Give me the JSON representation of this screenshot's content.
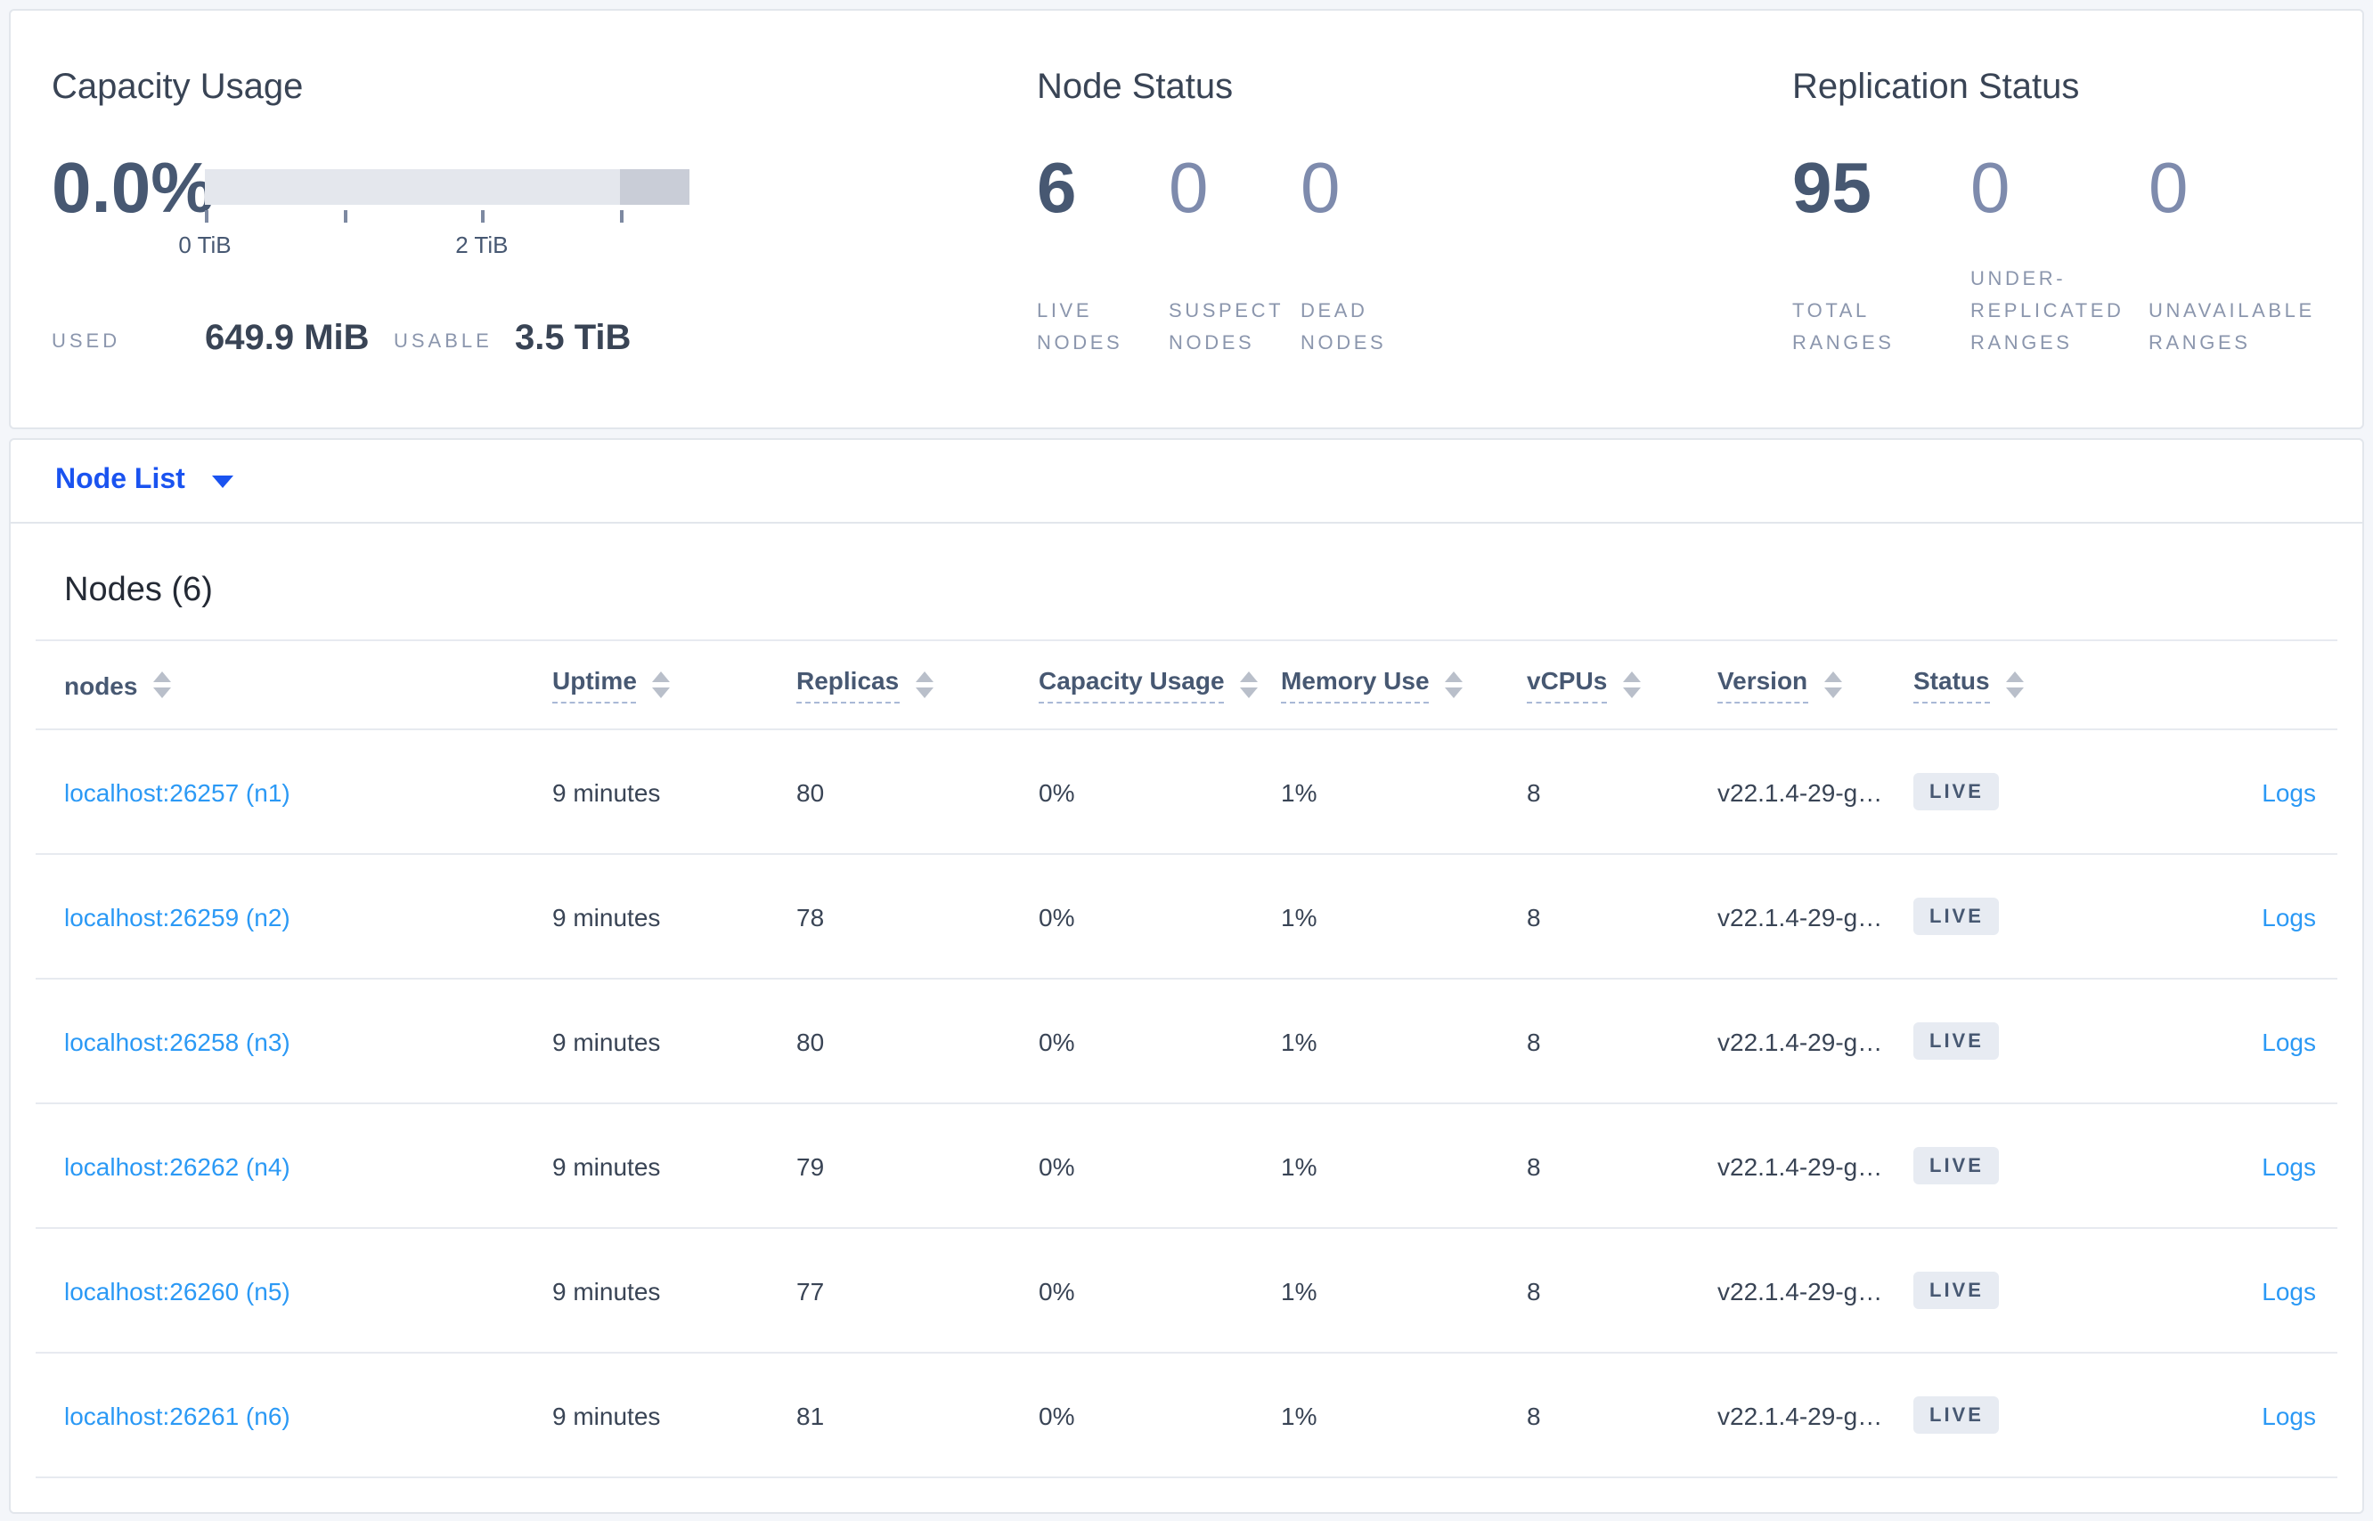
{
  "overview": {
    "capacity": {
      "title": "Capacity Usage",
      "percent": "0.0%",
      "bar": {
        "total": "3.5 TiB",
        "tick_positions_pct": [
          0,
          28.57,
          57.14,
          85.71
        ],
        "tick_labels": [
          {
            "text": "0 TiB",
            "pct": 0
          },
          {
            "text": "2 TiB",
            "pct": 57.14
          }
        ],
        "dark_segment": {
          "left_pct": 85.71,
          "width_pct": 14.29
        }
      },
      "used": {
        "label": "USED",
        "value": "649.9 MiB"
      },
      "usable": {
        "label": "USABLE",
        "value": "3.5 TiB"
      }
    },
    "node_status": {
      "title": "Node Status",
      "stats": [
        {
          "value": "6",
          "label": "LIVE\nNODES"
        },
        {
          "value": "0",
          "label": "SUSPECT\nNODES"
        },
        {
          "value": "0",
          "label": "DEAD\nNODES"
        }
      ]
    },
    "replication_status": {
      "title": "Replication Status",
      "stats": [
        {
          "value": "95",
          "label": "TOTAL\nRANGES"
        },
        {
          "value": "0",
          "label": "UNDER-\nREPLICATED\nRANGES"
        },
        {
          "value": "0",
          "label": "UNAVAILABLE\nRANGES"
        }
      ]
    }
  },
  "view_selector": {
    "label": "Node List",
    "icon": "caret-down"
  },
  "nodes": {
    "title": "Nodes (6)",
    "columns": [
      {
        "label": "nodes",
        "underlined": false
      },
      {
        "label": "Uptime",
        "underlined": true
      },
      {
        "label": "Replicas",
        "underlined": true
      },
      {
        "label": "Capacity Usage",
        "underlined": true
      },
      {
        "label": "Memory Use",
        "underlined": true
      },
      {
        "label": "vCPUs",
        "underlined": true
      },
      {
        "label": "Version",
        "underlined": true
      },
      {
        "label": "Status",
        "underlined": true
      }
    ],
    "rows": [
      {
        "address": "localhost:26257 (n1)",
        "uptime": "9 minutes",
        "replicas": "80",
        "capacity_usage": "0%",
        "memory_use": "1%",
        "vcpus": "8",
        "version": "v22.1.4-29-g…",
        "status": "LIVE",
        "logs_label": "Logs"
      },
      {
        "address": "localhost:26259 (n2)",
        "uptime": "9 minutes",
        "replicas": "78",
        "capacity_usage": "0%",
        "memory_use": "1%",
        "vcpus": "8",
        "version": "v22.1.4-29-g…",
        "status": "LIVE",
        "logs_label": "Logs"
      },
      {
        "address": "localhost:26258 (n3)",
        "uptime": "9 minutes",
        "replicas": "80",
        "capacity_usage": "0%",
        "memory_use": "1%",
        "vcpus": "8",
        "version": "v22.1.4-29-g…",
        "status": "LIVE",
        "logs_label": "Logs"
      },
      {
        "address": "localhost:26262 (n4)",
        "uptime": "9 minutes",
        "replicas": "79",
        "capacity_usage": "0%",
        "memory_use": "1%",
        "vcpus": "8",
        "version": "v22.1.4-29-g…",
        "status": "LIVE",
        "logs_label": "Logs"
      },
      {
        "address": "localhost:26260 (n5)",
        "uptime": "9 minutes",
        "replicas": "77",
        "capacity_usage": "0%",
        "memory_use": "1%",
        "vcpus": "8",
        "version": "v22.1.4-29-g…",
        "status": "LIVE",
        "logs_label": "Logs"
      },
      {
        "address": "localhost:26261 (n6)",
        "uptime": "9 minutes",
        "replicas": "81",
        "capacity_usage": "0%",
        "memory_use": "1%",
        "vcpus": "8",
        "version": "v22.1.4-29-g…",
        "status": "LIVE",
        "logs_label": "Logs"
      }
    ]
  },
  "colors": {
    "accent_blue": "#1a53f0",
    "link_blue": "#2b99f5",
    "number_primary": "#475872",
    "number_muted": "#7e8bad",
    "badge_bg": "#e7ebf2"
  }
}
